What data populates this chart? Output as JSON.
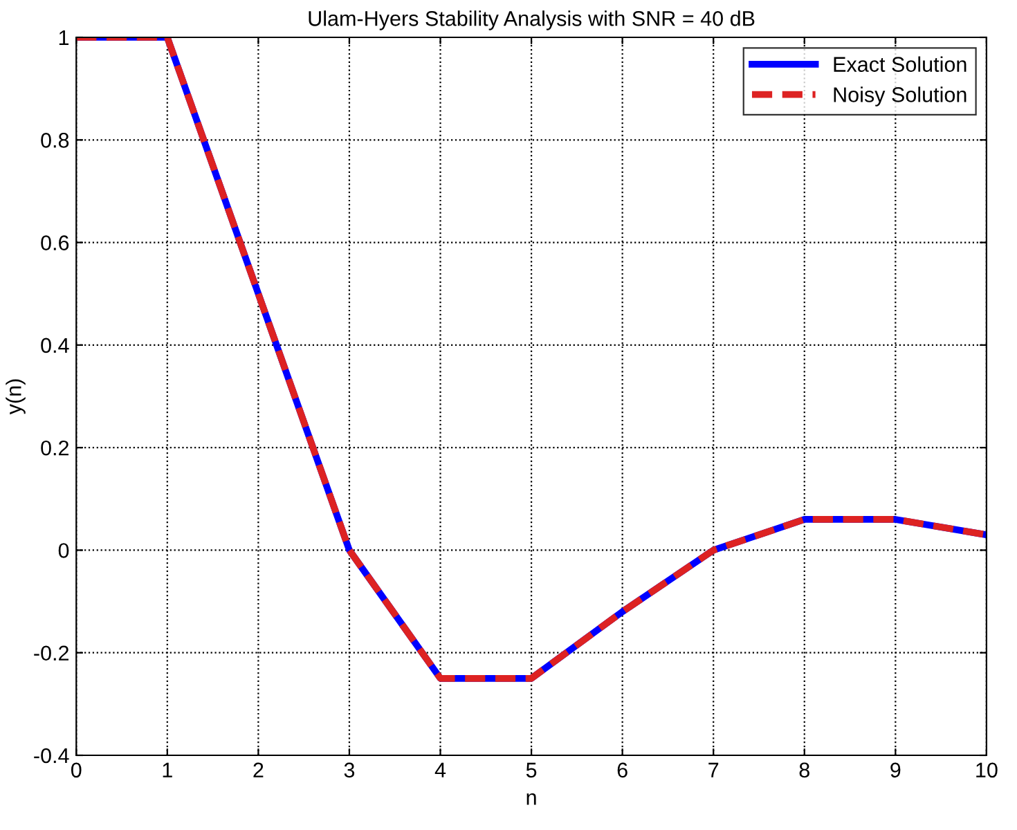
{
  "chart_data": {
    "type": "line",
    "title": "Ulam-Hyers Stability Analysis with SNR = 40 dB",
    "xlabel": "n",
    "ylabel": "y(n)",
    "x": [
      0,
      1,
      2,
      3,
      4,
      5,
      6,
      7,
      8,
      9,
      10
    ],
    "series": [
      {
        "name": "Exact Solution",
        "color": "#0000ff",
        "line_style": "solid",
        "values": [
          1,
          1,
          0.5,
          0,
          -0.25,
          -0.25,
          -0.12,
          0,
          0.06,
          0.06,
          0.03
        ]
      },
      {
        "name": "Noisy Solution",
        "color": "#dd2222",
        "line_style": "dashed",
        "values": [
          1,
          1,
          0.5,
          0,
          -0.25,
          -0.25,
          -0.12,
          0,
          0.06,
          0.06,
          0.03
        ]
      }
    ],
    "xlim": [
      0,
      10
    ],
    "xticks": [
      0,
      1,
      2,
      3,
      4,
      5,
      6,
      7,
      8,
      9,
      10
    ],
    "ylim": [
      -0.4,
      1
    ],
    "yticks": [
      -0.4,
      -0.2,
      0,
      0.2,
      0.4,
      0.6,
      0.8,
      1
    ],
    "grid": true,
    "legend": "top right",
    "marker": "none"
  }
}
